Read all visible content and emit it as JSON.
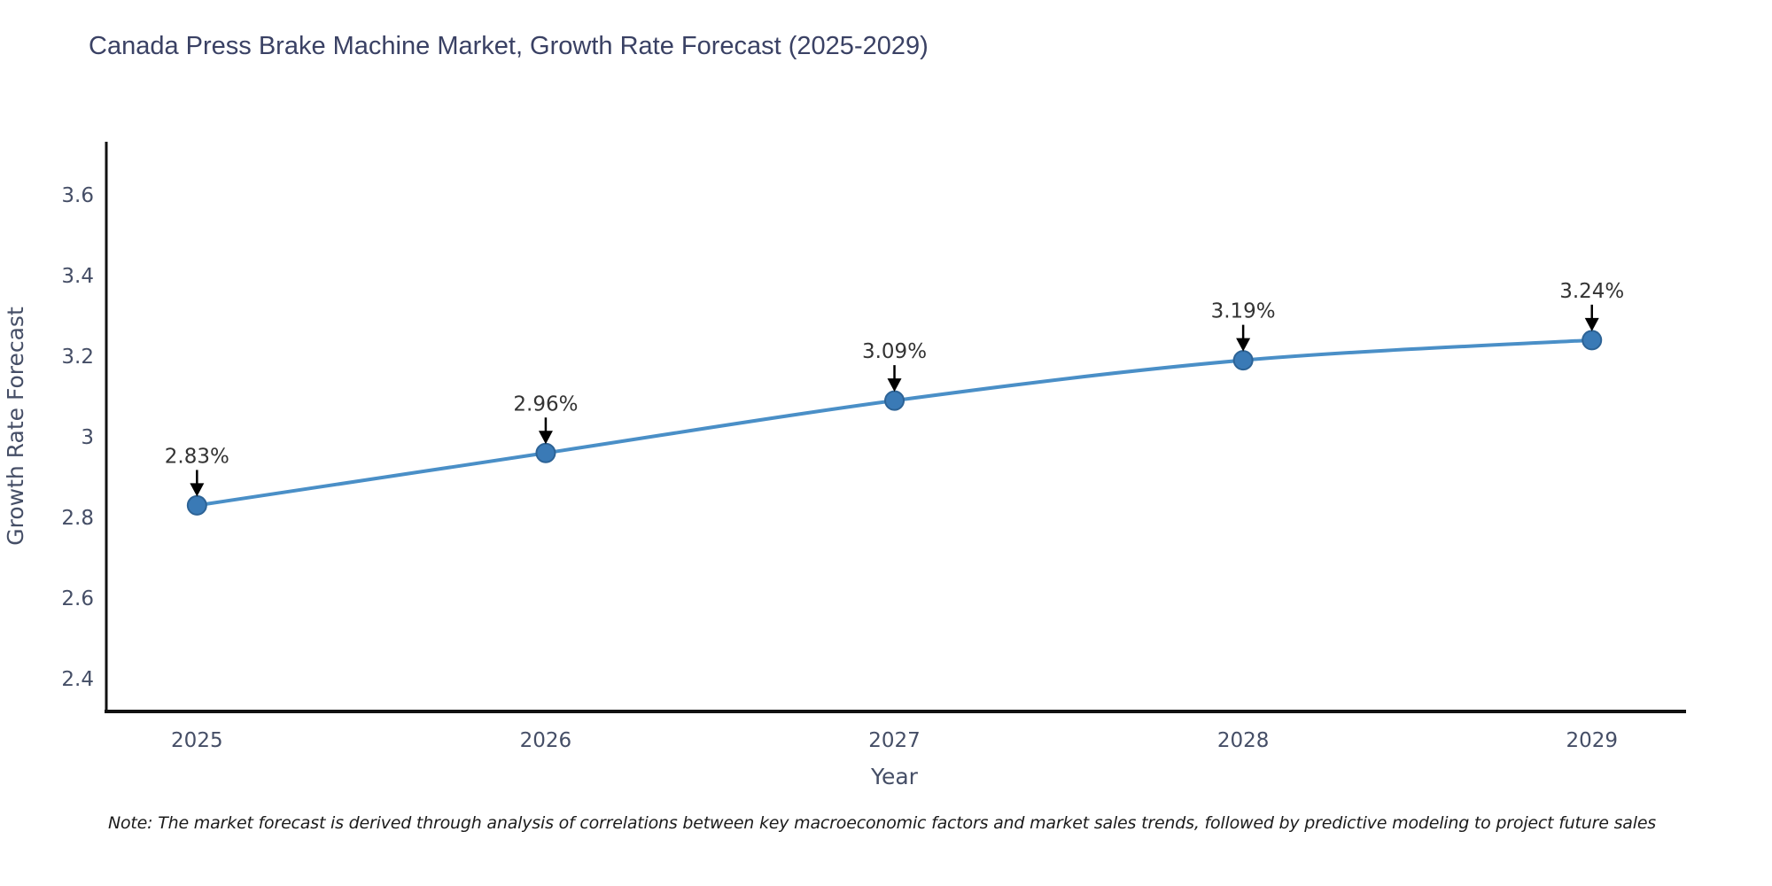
{
  "title": "Canada Press Brake Machine Market, Growth Rate Forecast (2025-2029)",
  "note": "Note: The market forecast is derived through analysis of correlations between key macroeconomic factors and market sales trends, followed by predictive modeling to project future sales",
  "chart_data": {
    "type": "line",
    "title": "Canada Press Brake Machine Market, Growth Rate Forecast (2025-2029)",
    "xlabel": "Year",
    "ylabel": "Growth Rate Forecast",
    "categories": [
      2025,
      2026,
      2027,
      2028,
      2029
    ],
    "values": [
      2.83,
      2.96,
      3.09,
      3.19,
      3.24
    ],
    "point_labels": [
      "2.83%",
      "2.96%",
      "3.09%",
      "3.19%",
      "3.24%"
    ],
    "yticks": [
      2.4,
      2.6,
      2.8,
      3,
      3.2,
      3.4,
      3.6
    ],
    "ylim": [
      2.321,
      3.732
    ],
    "xlim": [
      2024.74,
      2029.27
    ],
    "grid": false,
    "legend_position": "none",
    "line_shape": "spline",
    "colors": {
      "line": "#4a8fc7",
      "marker_fill": "#3a7ab6",
      "marker_edge": "#2d6396",
      "axis": "#111111",
      "annotation_arrow": "#000000",
      "title_text": "#3a4164",
      "tick_text": "#454e66",
      "annotation_text": "#333333",
      "note_text": "#1b1b1b",
      "background": "#ffffff"
    }
  }
}
